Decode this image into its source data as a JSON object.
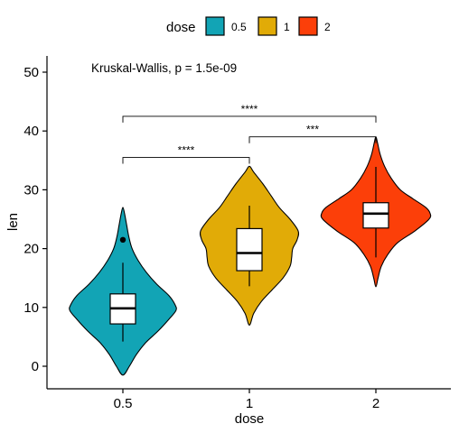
{
  "chart_data": {
    "type": "violin",
    "xlabel": "dose",
    "ylabel": "len",
    "categories": [
      "0.5",
      "1",
      "2"
    ],
    "ylim": [
      -4,
      52
    ],
    "yticks": [
      0,
      10,
      20,
      30,
      40,
      50
    ],
    "grid": false,
    "legend": {
      "title": "dose",
      "position": "top",
      "entries": [
        {
          "label": "0.5",
          "color": "#12A4B5"
        },
        {
          "label": "1",
          "color": "#E1AB07"
        },
        {
          "label": "2",
          "color": "#FC3F09"
        }
      ]
    },
    "annotation": "Kruskal-Wallis, p = 1.5e-09",
    "groups": [
      {
        "name": "0.5",
        "color": "#12A4B5",
        "box": {
          "q1": 7.2,
          "median": 9.85,
          "q3": 12.3,
          "whisker_low": 4.2,
          "whisker_high": 17.6
        },
        "outliers": [
          21.5
        ],
        "density": [
          [
            -1.5,
            0
          ],
          [
            0,
            0.12
          ],
          [
            2,
            0.25
          ],
          [
            4,
            0.42
          ],
          [
            6,
            0.65
          ],
          [
            8,
            0.85
          ],
          [
            9.5,
            0.98
          ],
          [
            10.5,
            0.96
          ],
          [
            12,
            0.85
          ],
          [
            14,
            0.62
          ],
          [
            16,
            0.43
          ],
          [
            18,
            0.28
          ],
          [
            20,
            0.17
          ],
          [
            22,
            0.11
          ],
          [
            24,
            0.07
          ],
          [
            26,
            0.03
          ],
          [
            27,
            0
          ]
        ]
      },
      {
        "name": "1",
        "color": "#E1AB07",
        "box": {
          "q1": 16.25,
          "median": 19.25,
          "q3": 23.4,
          "whisker_low": 13.6,
          "whisker_high": 27.3
        },
        "outliers": [],
        "density": [
          [
            7,
            0
          ],
          [
            9,
            0.08
          ],
          [
            11,
            0.22
          ],
          [
            13,
            0.42
          ],
          [
            15,
            0.62
          ],
          [
            17,
            0.75
          ],
          [
            18.5,
            0.78
          ],
          [
            20,
            0.8
          ],
          [
            21.5,
            0.88
          ],
          [
            23,
            0.9
          ],
          [
            25,
            0.75
          ],
          [
            27,
            0.55
          ],
          [
            29,
            0.4
          ],
          [
            31,
            0.25
          ],
          [
            33,
            0.08
          ],
          [
            34,
            0
          ]
        ]
      },
      {
        "name": "2",
        "color": "#FC3F09",
        "box": {
          "q1": 23.5,
          "median": 25.95,
          "q3": 27.8,
          "whisker_low": 18.5,
          "whisker_high": 33.9
        },
        "outliers": [],
        "density": [
          [
            13.5,
            0
          ],
          [
            15,
            0.04
          ],
          [
            17,
            0.1
          ],
          [
            19,
            0.22
          ],
          [
            21,
            0.4
          ],
          [
            23,
            0.72
          ],
          [
            25,
            0.98
          ],
          [
            26,
            1.0
          ],
          [
            27,
            0.92
          ],
          [
            28.5,
            0.68
          ],
          [
            30,
            0.45
          ],
          [
            32,
            0.28
          ],
          [
            34,
            0.16
          ],
          [
            36,
            0.08
          ],
          [
            38,
            0.03
          ],
          [
            39,
            0
          ]
        ]
      }
    ],
    "comparisons": [
      {
        "from": "0.5",
        "to": "1",
        "y": 35.5,
        "label": "****"
      },
      {
        "from": "1",
        "to": "2",
        "y": 39.0,
        "label": "***"
      },
      {
        "from": "0.5",
        "to": "2",
        "y": 42.5,
        "label": "****"
      }
    ]
  }
}
